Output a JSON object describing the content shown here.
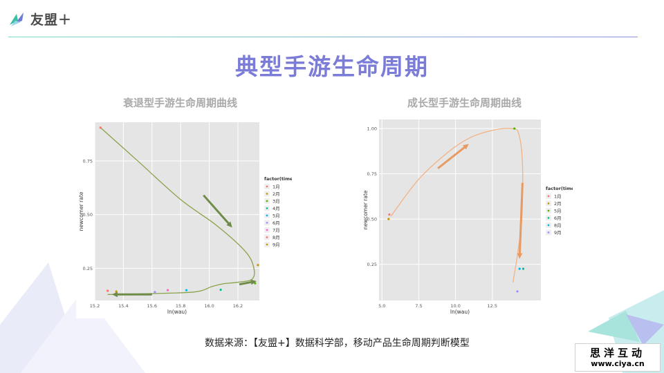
{
  "header": {
    "logo_text": "友盟＋"
  },
  "title": "典型手游生命周期",
  "footer": {
    "source": "数据来源：【友盟+】数据科学部，移动产品生命周期判断模型"
  },
  "watermark": {
    "title": "思洋互动",
    "url": "www.ciya.cn"
  },
  "colors": {
    "title": "#7b7bd8",
    "panel_bg": "#e5e5e5",
    "curve_decline": "#8aa24a",
    "curve_growth": "#f2b285",
    "arrow_decline": "#6f8b48",
    "arrow_growth": "#e79a62"
  },
  "legend_colors": [
    "#f8766d",
    "#c49a00",
    "#53b400",
    "#00c094",
    "#00b6eb",
    "#a58aff",
    "#fb61d7"
  ],
  "chart_data": [
    {
      "type": "scatter",
      "title": "衰退型手游生命周期曲线",
      "xlabel": "ln(wau)",
      "ylabel": "newcomer rate",
      "xlim": [
        15.2,
        16.35
      ],
      "ylim": [
        0.1,
        0.93
      ],
      "xticks": [
        15.2,
        15.4,
        15.6,
        15.8,
        16.0,
        16.2
      ],
      "xtick_labels": [
        "15.2",
        "15.4",
        "15.6",
        "15.8",
        "16.0",
        "16.2"
      ],
      "yticks": [
        0.25,
        0.5,
        0.75
      ],
      "ytick_labels": [
        "0.25",
        "0.50",
        "0.75"
      ],
      "legend_title": "factor(time)",
      "legend": [
        "1月",
        "2月",
        "3月",
        "4月",
        "5月",
        "6月",
        "7月",
        "8月",
        "9月"
      ],
      "points": [
        {
          "name": "1月",
          "x": 15.24,
          "y": 0.905
        },
        {
          "name": "2月",
          "x": 16.34,
          "y": 0.265
        },
        {
          "name": "3月",
          "x": 16.32,
          "y": 0.18
        },
        {
          "name": "4月",
          "x": 16.08,
          "y": 0.15
        },
        {
          "name": "5月",
          "x": 15.84,
          "y": 0.148
        },
        {
          "name": "6月",
          "x": 15.62,
          "y": 0.139
        },
        {
          "name": "7月",
          "x": 15.71,
          "y": 0.148
        },
        {
          "name": "8月",
          "x": 15.29,
          "y": 0.145
        },
        {
          "name": "9月",
          "x": 15.35,
          "y": 0.142
        }
      ],
      "curve": [
        [
          15.24,
          0.905
        ],
        [
          15.5,
          0.75
        ],
        [
          15.8,
          0.57
        ],
        [
          16.05,
          0.45
        ],
        [
          16.25,
          0.33
        ],
        [
          16.31,
          0.255
        ],
        [
          16.3,
          0.2
        ],
        [
          16.2,
          0.185
        ],
        [
          16.1,
          0.178
        ],
        [
          16.02,
          0.165
        ],
        [
          15.9,
          0.14
        ],
        [
          15.6,
          0.132
        ],
        [
          15.29,
          0.128
        ]
      ],
      "arrows": [
        {
          "from": [
            15.96,
            0.59
          ],
          "to": [
            16.16,
            0.44
          ]
        },
        {
          "from": [
            16.21,
            0.175
          ],
          "to": [
            16.33,
            0.19
          ]
        },
        {
          "from": [
            15.6,
            0.128
          ],
          "to": [
            15.32,
            0.128
          ]
        }
      ]
    },
    {
      "type": "scatter",
      "title": "成长型手游生命周期曲线",
      "xlabel": "ln(wau)",
      "ylabel": "newcomer rate",
      "xlim": [
        4.8,
        15.8
      ],
      "ylim": [
        0.05,
        1.05
      ],
      "xticks": [
        5,
        7.5,
        10,
        12.5
      ],
      "xtick_labels": [
        "5.0",
        "7.5",
        "10.0",
        "12.5"
      ],
      "yticks": [
        0.25,
        0.5,
        0.75,
        1.0
      ],
      "ytick_labels": [
        "0.25",
        "0.50",
        "0.75",
        "1.00"
      ],
      "legend_title": "factor(time)",
      "legend": [
        "1月",
        "2月",
        "5月",
        "6月",
        "8月",
        "9月"
      ],
      "points": [
        {
          "name": "1月",
          "x": 5.5,
          "y": 0.525
        },
        {
          "name": "2月",
          "x": 5.45,
          "y": 0.5
        },
        {
          "name": "5月",
          "x": 14.0,
          "y": 1.0
        },
        {
          "name": "6月",
          "x": 14.6,
          "y": 0.225
        },
        {
          "name": "8月",
          "x": 14.35,
          "y": 0.225
        },
        {
          "name": "9月",
          "x": 14.2,
          "y": 0.1
        }
      ],
      "curve": [
        [
          5.6,
          0.515
        ],
        [
          7.5,
          0.72
        ],
        [
          9.5,
          0.87
        ],
        [
          11.0,
          0.95
        ],
        [
          12.5,
          0.99
        ],
        [
          13.8,
          1.0
        ],
        [
          14.3,
          0.97
        ],
        [
          14.55,
          0.8
        ],
        [
          14.5,
          0.5
        ],
        [
          14.2,
          0.3
        ],
        [
          13.9,
          0.15
        ]
      ],
      "arrows": [
        {
          "from": [
            8.8,
            0.78
          ],
          "to": [
            10.9,
            0.915
          ]
        },
        {
          "from": [
            14.55,
            0.7
          ],
          "to": [
            14.35,
            0.28
          ]
        }
      ]
    }
  ]
}
